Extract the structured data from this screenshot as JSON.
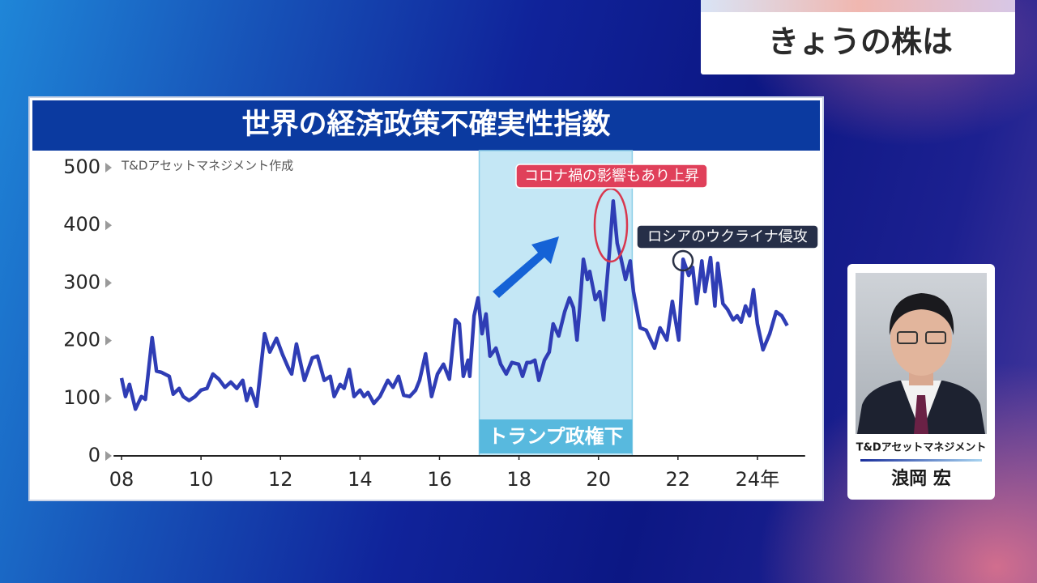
{
  "header": {
    "title": "きょうの株は"
  },
  "chart_data": {
    "type": "line",
    "title": "世界の経済政策不確実性指数",
    "note": "T&Dアセットマネジメント作成",
    "color": "#2f3db5",
    "x": [
      2008.0,
      2008.1,
      2008.2,
      2008.35,
      2008.5,
      2008.6,
      2008.77,
      2008.88,
      2009.0,
      2009.2,
      2009.3,
      2009.45,
      2009.55,
      2009.7,
      2009.85,
      2010.0,
      2010.15,
      2010.3,
      2010.45,
      2010.6,
      2010.75,
      2010.9,
      2011.05,
      2011.15,
      2011.25,
      2011.4,
      2011.6,
      2011.73,
      2011.9,
      2012.05,
      2012.2,
      2012.28,
      2012.4,
      2012.6,
      2012.8,
      2012.93,
      2013.1,
      2013.25,
      2013.35,
      2013.5,
      2013.6,
      2013.73,
      2013.85,
      2014.0,
      2014.1,
      2014.2,
      2014.35,
      2014.5,
      2014.7,
      2014.83,
      2014.97,
      2015.1,
      2015.25,
      2015.4,
      2015.5,
      2015.65,
      2015.8,
      2015.95,
      2016.1,
      2016.25,
      2016.4,
      2016.5,
      2016.6,
      2016.72,
      2016.76,
      2016.87,
      2016.97,
      2017.07,
      2017.17,
      2017.27,
      2017.42,
      2017.54,
      2017.68,
      2017.82,
      2017.99,
      2018.09,
      2018.2,
      2018.29,
      2018.4,
      2018.5,
      2018.64,
      2018.76,
      2018.86,
      2019.0,
      2019.15,
      2019.27,
      2019.37,
      2019.46,
      2019.53,
      2019.62,
      2019.72,
      2019.78,
      2019.92,
      2020.03,
      2020.13,
      2020.27,
      2020.37,
      2020.47,
      2020.57,
      2020.68,
      2020.8,
      2020.88,
      2021.05,
      2021.2,
      2021.41,
      2021.55,
      2021.72,
      2021.86,
      2022.02,
      2022.13,
      2022.27,
      2022.37,
      2022.47,
      2022.6,
      2022.68,
      2022.82,
      2022.93,
      2023.0,
      2023.13,
      2023.25,
      2023.39,
      2023.49,
      2023.59,
      2023.7,
      2023.8,
      2023.9,
      2024.0,
      2024.14,
      2024.31,
      2024.47,
      2024.61,
      2024.75
    ],
    "values": [
      135,
      103,
      124,
      81,
      103,
      98,
      205,
      147,
      145,
      138,
      107,
      117,
      103,
      96,
      103,
      114,
      117,
      142,
      133,
      119,
      128,
      117,
      131,
      96,
      117,
      86,
      212,
      180,
      204,
      176,
      152,
      142,
      194,
      131,
      170,
      173,
      131,
      138,
      103,
      124,
      117,
      150,
      103,
      114,
      103,
      110,
      91,
      103,
      131,
      119,
      138,
      105,
      103,
      114,
      131,
      177,
      103,
      142,
      159,
      133,
      236,
      229,
      138,
      166,
      138,
      243,
      274,
      212,
      246,
      173,
      187,
      159,
      142,
      162,
      159,
      138,
      162,
      162,
      166,
      131,
      166,
      180,
      229,
      208,
      250,
      274,
      257,
      201,
      257,
      341,
      306,
      320,
      271,
      285,
      236,
      348,
      442,
      369,
      341,
      306,
      338,
      285,
      222,
      218,
      187,
      222,
      201,
      268,
      201,
      341,
      313,
      327,
      264,
      338,
      285,
      344,
      260,
      334,
      264,
      254,
      236,
      243,
      232,
      260,
      243,
      288,
      229,
      184,
      212,
      250,
      243,
      226
    ],
    "xlim": [
      2007.8,
      2025.2
    ],
    "xticks": [
      {
        "value": 2008,
        "label": "08"
      },
      {
        "value": 2010,
        "label": "10"
      },
      {
        "value": 2012,
        "label": "12"
      },
      {
        "value": 2014,
        "label": "14"
      },
      {
        "value": 2016,
        "label": "16"
      },
      {
        "value": 2018,
        "label": "18"
      },
      {
        "value": 2020,
        "label": "20"
      },
      {
        "value": 2022,
        "label": "22"
      },
      {
        "value": 2024,
        "label": "24年"
      }
    ],
    "ylim": [
      0,
      500
    ],
    "yticks": [
      0,
      100,
      200,
      300,
      400,
      500
    ],
    "grid": false,
    "shaded_region": {
      "start": 2017.0,
      "end": 2020.85,
      "label": "トランプ政権下"
    },
    "annotations": [
      {
        "text": "コロナ禍の影響もあり上昇"
      },
      {
        "text": "ロシアのウクライナ侵攻"
      }
    ]
  },
  "presenter": {
    "company": "T&Dアセットマネジメント",
    "name": "浪岡 宏"
  }
}
